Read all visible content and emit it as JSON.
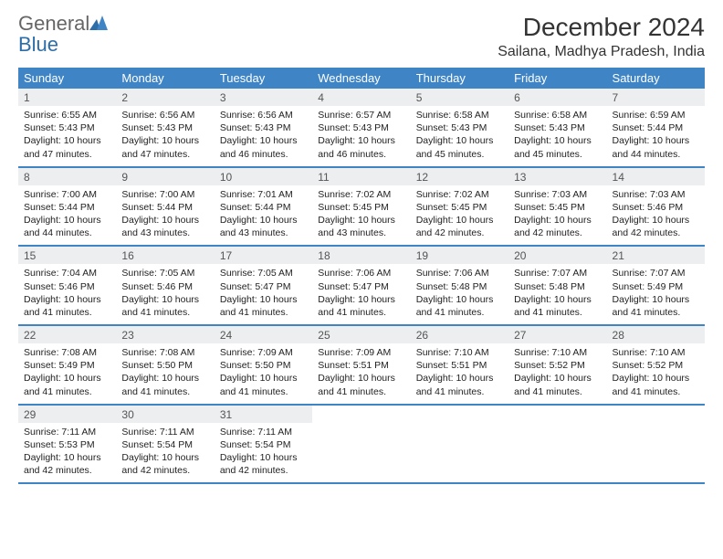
{
  "logo": {
    "word1": "General",
    "word2": "Blue"
  },
  "title": "December 2024",
  "location": "Sailana, Madhya Pradesh, India",
  "weekdays": [
    "Sunday",
    "Monday",
    "Tuesday",
    "Wednesday",
    "Thursday",
    "Friday",
    "Saturday"
  ],
  "colors": {
    "header_bg": "#3f85c6",
    "daynum_bg": "#eceef0",
    "rule": "#3f85c6",
    "logo_gray": "#666666",
    "logo_blue": "#2d6ea8"
  },
  "weeks": [
    [
      {
        "n": "1",
        "sr": "6:55 AM",
        "ss": "5:43 PM",
        "dl": "10 hours and 47 minutes."
      },
      {
        "n": "2",
        "sr": "6:56 AM",
        "ss": "5:43 PM",
        "dl": "10 hours and 47 minutes."
      },
      {
        "n": "3",
        "sr": "6:56 AM",
        "ss": "5:43 PM",
        "dl": "10 hours and 46 minutes."
      },
      {
        "n": "4",
        "sr": "6:57 AM",
        "ss": "5:43 PM",
        "dl": "10 hours and 46 minutes."
      },
      {
        "n": "5",
        "sr": "6:58 AM",
        "ss": "5:43 PM",
        "dl": "10 hours and 45 minutes."
      },
      {
        "n": "6",
        "sr": "6:58 AM",
        "ss": "5:43 PM",
        "dl": "10 hours and 45 minutes."
      },
      {
        "n": "7",
        "sr": "6:59 AM",
        "ss": "5:44 PM",
        "dl": "10 hours and 44 minutes."
      }
    ],
    [
      {
        "n": "8",
        "sr": "7:00 AM",
        "ss": "5:44 PM",
        "dl": "10 hours and 44 minutes."
      },
      {
        "n": "9",
        "sr": "7:00 AM",
        "ss": "5:44 PM",
        "dl": "10 hours and 43 minutes."
      },
      {
        "n": "10",
        "sr": "7:01 AM",
        "ss": "5:44 PM",
        "dl": "10 hours and 43 minutes."
      },
      {
        "n": "11",
        "sr": "7:02 AM",
        "ss": "5:45 PM",
        "dl": "10 hours and 43 minutes."
      },
      {
        "n": "12",
        "sr": "7:02 AM",
        "ss": "5:45 PM",
        "dl": "10 hours and 42 minutes."
      },
      {
        "n": "13",
        "sr": "7:03 AM",
        "ss": "5:45 PM",
        "dl": "10 hours and 42 minutes."
      },
      {
        "n": "14",
        "sr": "7:03 AM",
        "ss": "5:46 PM",
        "dl": "10 hours and 42 minutes."
      }
    ],
    [
      {
        "n": "15",
        "sr": "7:04 AM",
        "ss": "5:46 PM",
        "dl": "10 hours and 41 minutes."
      },
      {
        "n": "16",
        "sr": "7:05 AM",
        "ss": "5:46 PM",
        "dl": "10 hours and 41 minutes."
      },
      {
        "n": "17",
        "sr": "7:05 AM",
        "ss": "5:47 PM",
        "dl": "10 hours and 41 minutes."
      },
      {
        "n": "18",
        "sr": "7:06 AM",
        "ss": "5:47 PM",
        "dl": "10 hours and 41 minutes."
      },
      {
        "n": "19",
        "sr": "7:06 AM",
        "ss": "5:48 PM",
        "dl": "10 hours and 41 minutes."
      },
      {
        "n": "20",
        "sr": "7:07 AM",
        "ss": "5:48 PM",
        "dl": "10 hours and 41 minutes."
      },
      {
        "n": "21",
        "sr": "7:07 AM",
        "ss": "5:49 PM",
        "dl": "10 hours and 41 minutes."
      }
    ],
    [
      {
        "n": "22",
        "sr": "7:08 AM",
        "ss": "5:49 PM",
        "dl": "10 hours and 41 minutes."
      },
      {
        "n": "23",
        "sr": "7:08 AM",
        "ss": "5:50 PM",
        "dl": "10 hours and 41 minutes."
      },
      {
        "n": "24",
        "sr": "7:09 AM",
        "ss": "5:50 PM",
        "dl": "10 hours and 41 minutes."
      },
      {
        "n": "25",
        "sr": "7:09 AM",
        "ss": "5:51 PM",
        "dl": "10 hours and 41 minutes."
      },
      {
        "n": "26",
        "sr": "7:10 AM",
        "ss": "5:51 PM",
        "dl": "10 hours and 41 minutes."
      },
      {
        "n": "27",
        "sr": "7:10 AM",
        "ss": "5:52 PM",
        "dl": "10 hours and 41 minutes."
      },
      {
        "n": "28",
        "sr": "7:10 AM",
        "ss": "5:52 PM",
        "dl": "10 hours and 41 minutes."
      }
    ],
    [
      {
        "n": "29",
        "sr": "7:11 AM",
        "ss": "5:53 PM",
        "dl": "10 hours and 42 minutes."
      },
      {
        "n": "30",
        "sr": "7:11 AM",
        "ss": "5:54 PM",
        "dl": "10 hours and 42 minutes."
      },
      {
        "n": "31",
        "sr": "7:11 AM",
        "ss": "5:54 PM",
        "dl": "10 hours and 42 minutes."
      },
      null,
      null,
      null,
      null
    ]
  ],
  "labels": {
    "sunrise": "Sunrise:",
    "sunset": "Sunset:",
    "daylight": "Daylight:"
  }
}
